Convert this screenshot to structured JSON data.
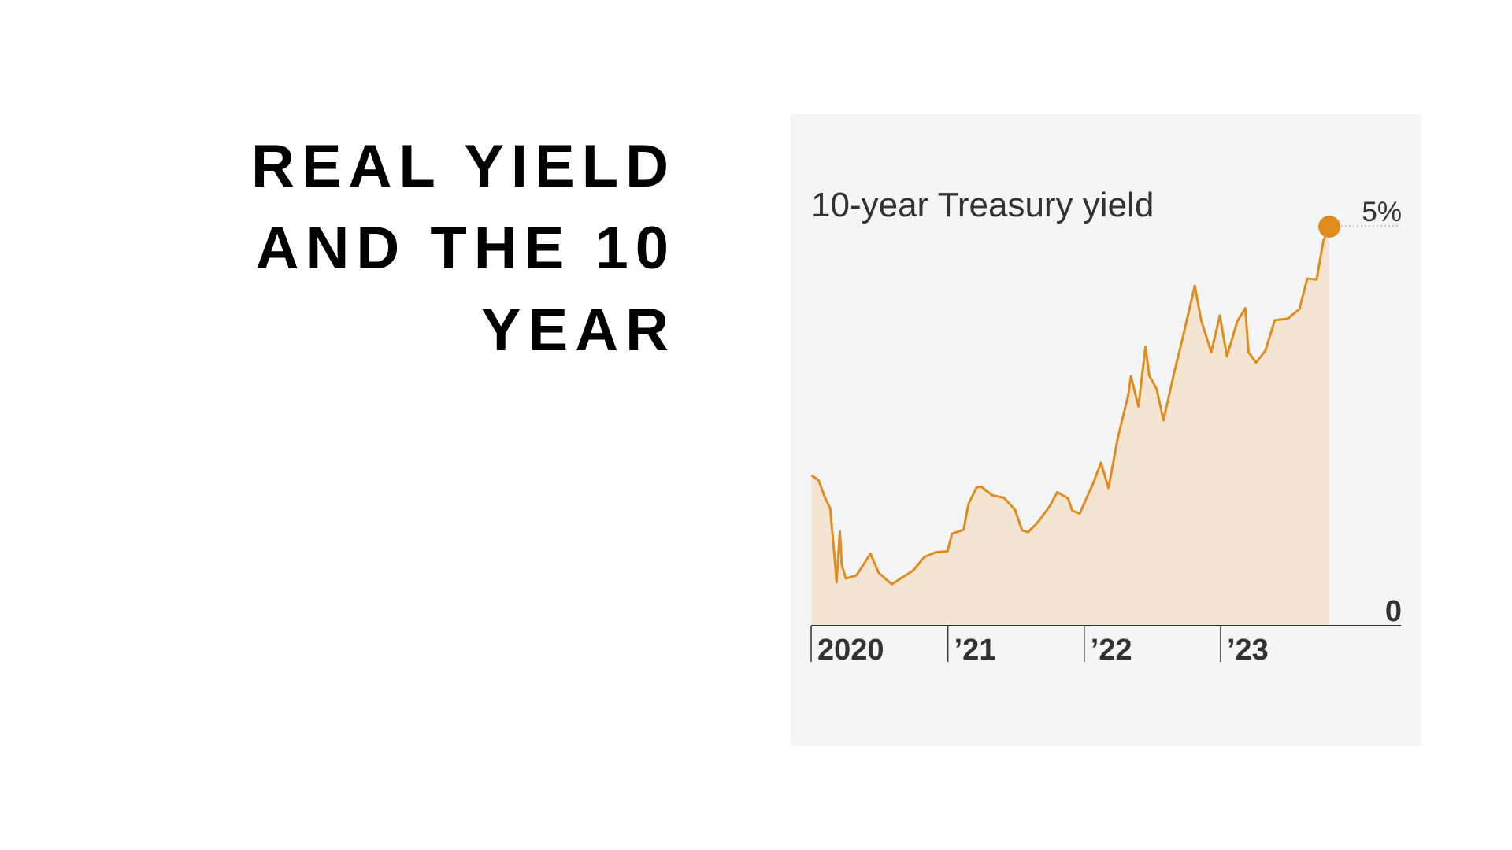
{
  "slide": {
    "title_lines": [
      "REAL YIELD",
      "AND THE 10",
      "YEAR"
    ]
  },
  "chart_data": {
    "type": "area",
    "title": "10-year Treasury yield",
    "x_tick_labels": [
      "2020",
      "’21",
      "’22",
      "’23"
    ],
    "y_tick_labels": [
      "0",
      "5%"
    ],
    "ylim": [
      0,
      5
    ],
    "xlim": [
      "2020-01-01",
      "2023-10-19"
    ],
    "grid": false,
    "legend": "none",
    "line_color": "#e08c1e",
    "fill_color": "#f3e5d1",
    "x": [
      "2020-01-02",
      "2020-01-21",
      "2020-02-07",
      "2020-02-21",
      "2020-03-06",
      "2020-03-09",
      "2020-03-18",
      "2020-03-23",
      "2020-04-03",
      "2020-05-01",
      "2020-06-08",
      "2020-06-30",
      "2020-08-04",
      "2020-09-30",
      "2020-10-30",
      "2020-12-01",
      "2020-12-31",
      "2021-01-12",
      "2021-02-12",
      "2021-02-25",
      "2021-03-19",
      "2021-03-31",
      "2021-04-30",
      "2021-05-31",
      "2021-06-30",
      "2021-07-19",
      "2021-08-04",
      "2021-08-31",
      "2021-09-30",
      "2021-10-21",
      "2021-11-19",
      "2021-11-30",
      "2021-12-20",
      "2021-12-31",
      "2022-01-24",
      "2022-02-15",
      "2022-03-07",
      "2022-03-31",
      "2022-04-29",
      "2022-05-06",
      "2022-05-26",
      "2022-06-14",
      "2022-06-24",
      "2022-07-14",
      "2022-08-01",
      "2022-08-31",
      "2022-09-20",
      "2022-10-24",
      "2022-11-10",
      "2022-12-07",
      "2022-12-30",
      "2023-01-18",
      "2023-02-15",
      "2023-03-08",
      "2023-03-17",
      "2023-04-06",
      "2023-05-01",
      "2023-05-26",
      "2023-06-30",
      "2023-07-31",
      "2023-08-21",
      "2023-09-15",
      "2023-10-03",
      "2023-10-19"
    ],
    "values": [
      1.88,
      1.82,
      1.6,
      1.47,
      0.74,
      0.54,
      1.18,
      0.76,
      0.59,
      0.63,
      0.9,
      0.66,
      0.52,
      0.69,
      0.86,
      0.92,
      0.93,
      1.15,
      1.2,
      1.52,
      1.73,
      1.74,
      1.63,
      1.6,
      1.45,
      1.19,
      1.17,
      1.3,
      1.49,
      1.67,
      1.59,
      1.44,
      1.4,
      1.52,
      1.77,
      2.04,
      1.72,
      2.33,
      2.89,
      3.12,
      2.74,
      3.49,
      3.13,
      2.96,
      2.57,
      3.19,
      3.57,
      4.25,
      3.82,
      3.42,
      3.88,
      3.37,
      3.81,
      3.97,
      3.42,
      3.29,
      3.44,
      3.82,
      3.84,
      3.96,
      4.34,
      4.33,
      4.81,
      4.99
    ]
  }
}
